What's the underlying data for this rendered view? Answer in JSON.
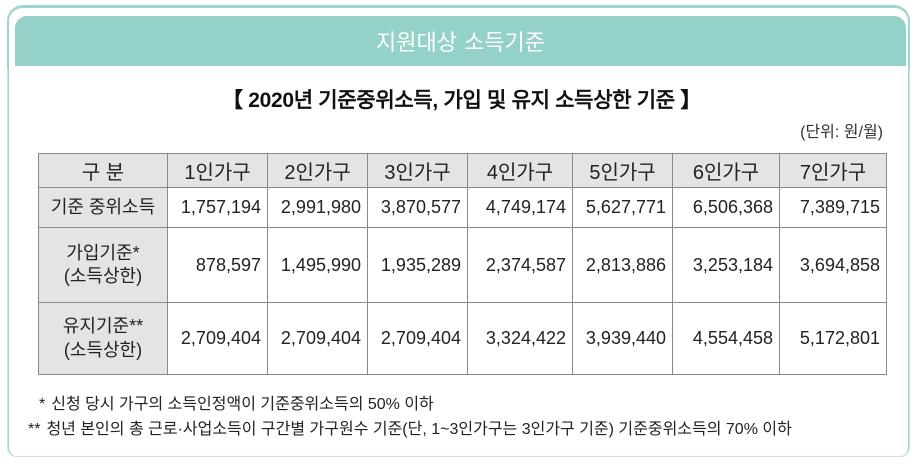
{
  "header": {
    "banner_title": "지원대상 소득기준"
  },
  "document": {
    "title": "【 2020년 기준중위소득, 가입 및 유지 소득상한 기준 】",
    "unit_label": "(단위: 원/월)"
  },
  "table": {
    "columns": [
      "구 분",
      "1인가구",
      "2인가구",
      "3인가구",
      "4인가구",
      "5인가구",
      "6인가구",
      "7인가구"
    ],
    "rows": [
      {
        "label_line1": "기준 중위소득",
        "label_line2": "",
        "values": [
          "1,757,194",
          "2,991,980",
          "3,870,577",
          "4,749,174",
          "5,627,771",
          "6,506,368",
          "7,389,715"
        ]
      },
      {
        "label_line1": "가입기준*",
        "label_line2": "(소득상한)",
        "values": [
          "878,597",
          "1,495,990",
          "1,935,289",
          "2,374,587",
          "2,813,886",
          "3,253,184",
          "3,694,858"
        ]
      },
      {
        "label_line1": "유지기준**",
        "label_line2": "(소득상한)",
        "values": [
          "2,709,404",
          "2,709,404",
          "2,709,404",
          "3,324,422",
          "3,939,440",
          "4,554,458",
          "5,172,801"
        ]
      }
    ]
  },
  "notes": [
    {
      "mark": "*",
      "text": "신청 당시 가구의 소득인정액이 기준중위소득의 50% 이하"
    },
    {
      "mark": "**",
      "text": "청년 본인의 총 근로·사업소득이 구간별 가구원수 기준(단, 1~3인가구는 3인가구 기준) 기준중위소득의 70% 이하"
    }
  ],
  "colors": {
    "banner_bg": "#93d1c9",
    "frame_border": "#9fd6ce",
    "header_cell_bg": "#e4e4e4",
    "table_border": "#8a8a8a"
  }
}
